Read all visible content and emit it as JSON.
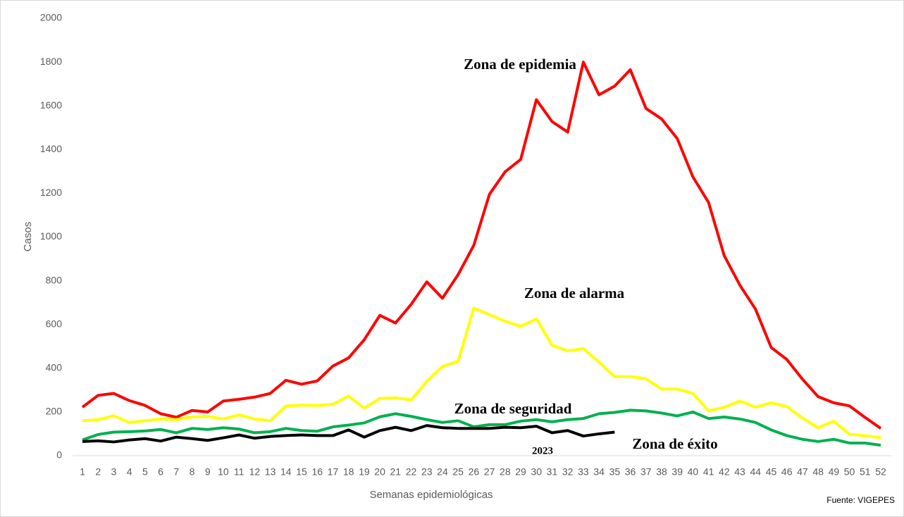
{
  "chart_data": {
    "type": "line",
    "y_label": "Casos",
    "x_label": "Semanas epidemiológicas",
    "source": "Fuente: VIGEPES",
    "annotations": [
      "Zona de éxito"
    ],
    "x": [
      1,
      2,
      3,
      4,
      5,
      6,
      7,
      8,
      9,
      10,
      11,
      12,
      13,
      14,
      15,
      16,
      17,
      18,
      19,
      20,
      21,
      22,
      23,
      24,
      25,
      26,
      27,
      28,
      29,
      30,
      31,
      32,
      33,
      34,
      35,
      36,
      37,
      38,
      39,
      40,
      41,
      42,
      43,
      44,
      45,
      46,
      47,
      48,
      49,
      50,
      51,
      52
    ],
    "xlim": [
      1,
      52
    ],
    "ylim": [
      0,
      2000
    ],
    "yticks": [
      0,
      200,
      400,
      600,
      800,
      1000,
      1200,
      1400,
      1600,
      1800,
      2000
    ],
    "grid": false,
    "series": [
      {
        "name": "Zona de epidemia",
        "color": "#ff0000",
        "values": [
          222,
          276,
          285,
          252,
          230,
          192,
          176,
          207,
          200,
          250,
          258,
          268,
          285,
          345,
          327,
          342,
          410,
          447,
          530,
          642,
          607,
          692,
          795,
          720,
          828,
          962,
          1195,
          1298,
          1355,
          1628,
          1528,
          1480,
          1800,
          1650,
          1690,
          1765,
          1588,
          1540,
          1450,
          1275,
          1158,
          915,
          780,
          670,
          495,
          440,
          350,
          270,
          242,
          228,
          175,
          125
        ]
      },
      {
        "name": "Zona de alarma",
        "color": "#ffff00",
        "values": [
          160,
          165,
          183,
          152,
          160,
          168,
          165,
          178,
          180,
          168,
          187,
          168,
          160,
          227,
          232,
          230,
          235,
          273,
          218,
          262,
          265,
          255,
          340,
          408,
          432,
          675,
          645,
          615,
          592,
          625,
          505,
          480,
          490,
          428,
          362,
          362,
          352,
          305,
          305,
          285,
          205,
          222,
          250,
          222,
          242,
          225,
          172,
          128,
          158,
          98,
          92,
          82
        ]
      },
      {
        "name": "Zona de seguridad",
        "color": "#00b050",
        "values": [
          72,
          97,
          108,
          110,
          113,
          120,
          105,
          125,
          120,
          128,
          122,
          105,
          110,
          125,
          115,
          112,
          132,
          140,
          150,
          178,
          192,
          180,
          165,
          152,
          160,
          132,
          142,
          142,
          158,
          165,
          155,
          165,
          170,
          192,
          198,
          208,
          205,
          195,
          182,
          200,
          170,
          177,
          168,
          152,
          118,
          92,
          75,
          65,
          75,
          58,
          58,
          48
        ]
      },
      {
        "name": "2023",
        "color": "#000000",
        "values": [
          65,
          68,
          63,
          72,
          78,
          67,
          85,
          78,
          70,
          82,
          95,
          80,
          88,
          92,
          95,
          92,
          92,
          118,
          85,
          115,
          130,
          115,
          138,
          128,
          125,
          125,
          125,
          130,
          128,
          135,
          105,
          115,
          90,
          100,
          108,
          null,
          null,
          null,
          null,
          null,
          null,
          null,
          null,
          null,
          null,
          null,
          null,
          null,
          null,
          null,
          null,
          null
        ]
      }
    ]
  }
}
